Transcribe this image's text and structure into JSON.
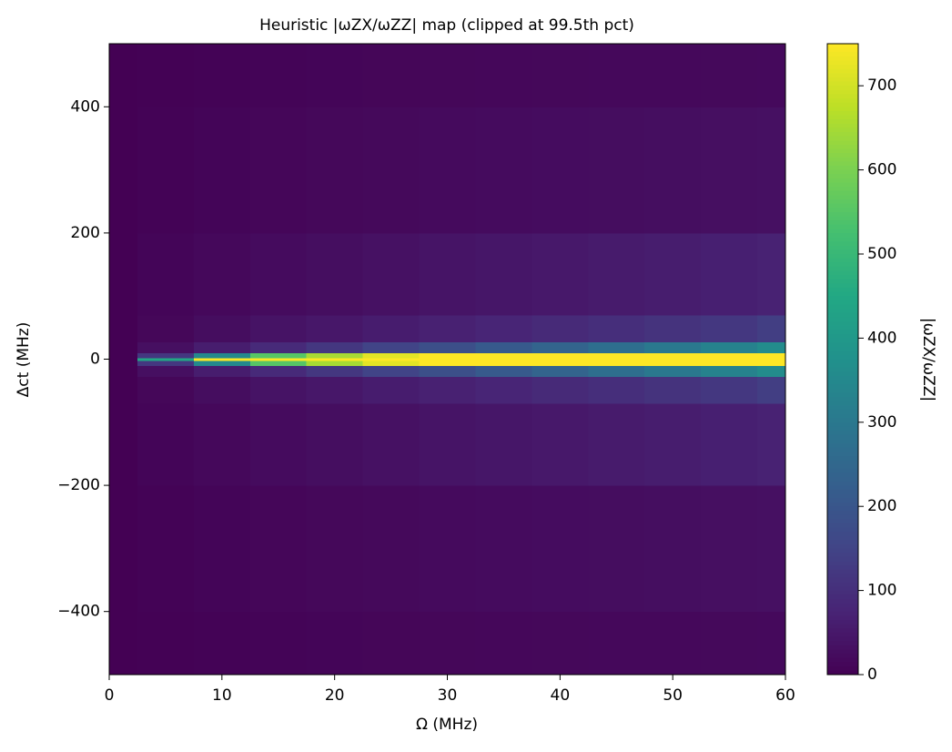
{
  "chart_data": {
    "type": "heatmap",
    "title": "Heuristic |ωZX/ωZZ| map (clipped at 99.5th pct)",
    "x_label": "Ω (MHz)",
    "y_label": "Δct (MHz)",
    "colorbar_label": "|ωZX/ωZZ|",
    "colormap": "viridis",
    "x": [
      0,
      5,
      10,
      15,
      20,
      25,
      30,
      35,
      40,
      45,
      50,
      55,
      60
    ],
    "y": [
      -500,
      -300,
      -100,
      -40,
      -15,
      -5,
      0,
      5,
      15,
      40,
      100,
      300,
      500
    ],
    "z": [
      [
        0,
        2,
        4,
        6,
        8,
        10,
        12,
        13,
        14,
        15,
        16,
        17,
        18
      ],
      [
        0,
        4,
        8,
        11,
        14,
        17,
        20,
        22,
        24,
        26,
        28,
        30,
        32
      ],
      [
        0,
        8,
        15,
        22,
        28,
        34,
        40,
        45,
        50,
        55,
        60,
        65,
        70
      ],
      [
        0,
        12,
        25,
        38,
        48,
        58,
        68,
        78,
        88,
        98,
        110,
        120,
        135
      ],
      [
        0,
        30,
        60,
        90,
        120,
        150,
        180,
        210,
        240,
        270,
        300,
        330,
        360
      ],
      [
        0,
        120,
        350,
        550,
        650,
        720,
        750,
        750,
        750,
        750,
        750,
        750,
        750
      ],
      [
        0,
        450,
        750,
        750,
        750,
        750,
        750,
        750,
        750,
        750,
        750,
        750,
        750
      ],
      [
        0,
        120,
        350,
        550,
        650,
        720,
        750,
        750,
        750,
        750,
        750,
        750,
        750
      ],
      [
        0,
        30,
        60,
        90,
        120,
        150,
        180,
        210,
        240,
        270,
        300,
        330,
        360
      ],
      [
        0,
        12,
        25,
        38,
        48,
        58,
        68,
        78,
        88,
        98,
        110,
        120,
        135
      ],
      [
        0,
        8,
        15,
        22,
        28,
        34,
        40,
        45,
        50,
        55,
        60,
        65,
        70
      ],
      [
        0,
        4,
        8,
        11,
        14,
        17,
        20,
        22,
        24,
        26,
        28,
        30,
        32
      ],
      [
        0,
        2,
        4,
        6,
        8,
        10,
        12,
        13,
        14,
        15,
        16,
        17,
        18
      ]
    ],
    "xlim": [
      0,
      60
    ],
    "xticks": [
      0,
      10,
      20,
      30,
      40,
      50,
      60
    ],
    "ylim": [
      -500,
      500
    ],
    "yticks": [
      {
        "value": -400,
        "label": "−400"
      },
      {
        "value": -200,
        "label": "−200"
      },
      0,
      200,
      400
    ],
    "clim": [
      0,
      750
    ],
    "cticks": [
      0,
      100,
      200,
      300,
      400,
      500,
      600,
      700
    ]
  }
}
